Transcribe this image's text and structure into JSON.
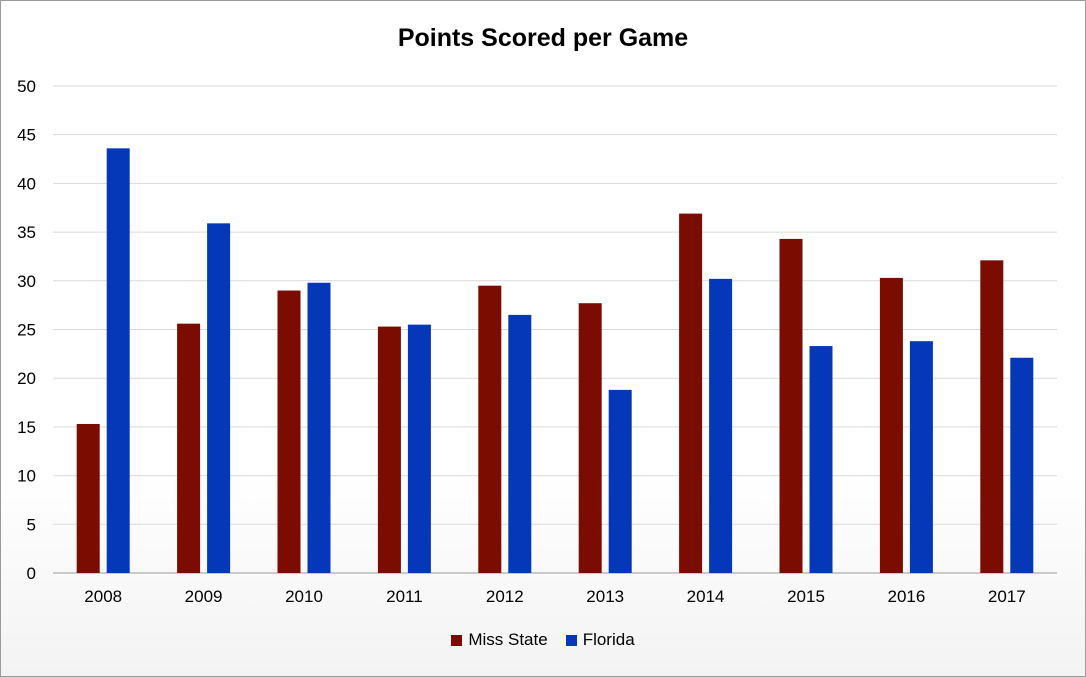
{
  "chart_data": {
    "type": "bar",
    "title": "Points Scored per Game",
    "xlabel": "",
    "ylabel": "",
    "ylim": [
      0,
      50
    ],
    "yticks": [
      0,
      5,
      10,
      15,
      20,
      25,
      30,
      35,
      40,
      45,
      50
    ],
    "grid": true,
    "legend_position": "bottom",
    "categories": [
      "2008",
      "2009",
      "2010",
      "2011",
      "2012",
      "2013",
      "2014",
      "2015",
      "2016",
      "2017"
    ],
    "series": [
      {
        "name": "Miss State",
        "color": "#7a0c02",
        "values": [
          15.3,
          25.6,
          29.0,
          25.3,
          29.5,
          27.7,
          36.9,
          34.3,
          30.3,
          32.1
        ]
      },
      {
        "name": "Florida",
        "color": "#0438b8",
        "values": [
          43.6,
          35.9,
          29.8,
          25.5,
          26.5,
          18.8,
          30.2,
          23.3,
          23.8,
          22.1
        ]
      }
    ]
  }
}
